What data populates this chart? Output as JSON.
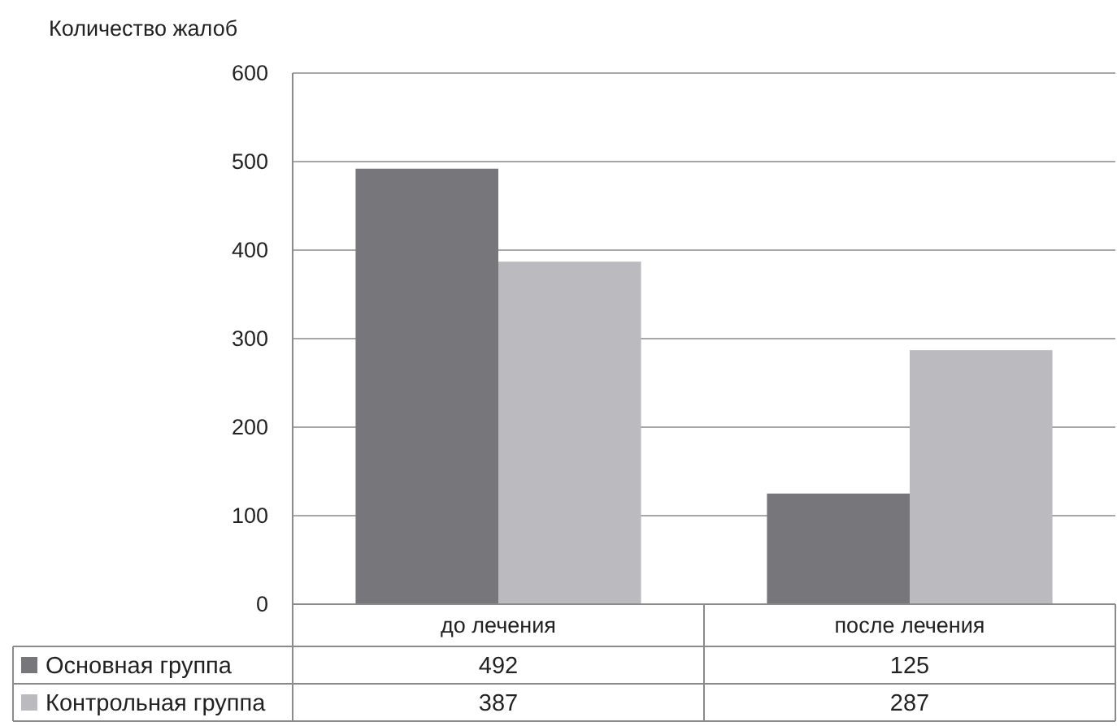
{
  "chart_data": {
    "type": "bar",
    "ylabel": "Количество жалоб",
    "categories": [
      "до лечения",
      "после лечения"
    ],
    "series": [
      {
        "name": "Основная группа",
        "color": "#77777b",
        "values": [
          492,
          125
        ]
      },
      {
        "name": "Контрольная группа",
        "color": "#bbbbbf",
        "values": [
          387,
          287
        ]
      }
    ],
    "ylim": [
      0,
      600
    ],
    "yticks": [
      0,
      100,
      200,
      300,
      400,
      500,
      600
    ],
    "grid": "y",
    "legend": "bottom",
    "data_labels": true
  }
}
